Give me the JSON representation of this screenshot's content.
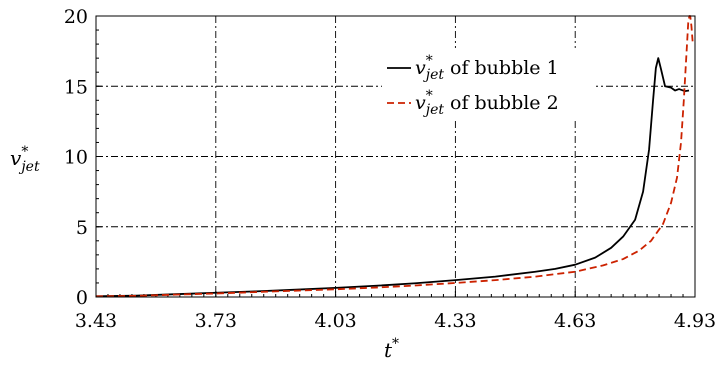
{
  "chart_data": {
    "type": "line",
    "xlabel": {
      "base": "t",
      "sup": "*"
    },
    "ylabel": {
      "base": "v",
      "sup": "*",
      "sub": "jet"
    },
    "xlim": [
      3.43,
      4.93
    ],
    "ylim": [
      0,
      20
    ],
    "xticks": [
      3.43,
      3.73,
      4.03,
      4.33,
      4.63,
      4.93
    ],
    "yticks": [
      0,
      5,
      10,
      15,
      20
    ],
    "xtick_labels": [
      "3.43",
      "3.73",
      "4.03",
      "4.33",
      "4.63",
      "4.93"
    ],
    "ytick_labels": [
      "0",
      "5",
      "10",
      "15",
      "20"
    ],
    "grid": true,
    "legend_position": "top-right",
    "series": [
      {
        "name": "of bubble 1",
        "label_var": {
          "base": "v",
          "sup": "*",
          "sub": "jet"
        },
        "color": "#000000",
        "style": "solid",
        "x": [
          3.43,
          3.53,
          3.63,
          3.73,
          3.83,
          3.93,
          4.03,
          4.13,
          4.23,
          4.33,
          4.43,
          4.53,
          4.58,
          4.63,
          4.68,
          4.72,
          4.75,
          4.78,
          4.8,
          4.815,
          4.825,
          4.832,
          4.838,
          4.845,
          4.855,
          4.87,
          4.88,
          4.89,
          4.905,
          4.915
        ],
        "y": [
          0.05,
          0.1,
          0.2,
          0.3,
          0.4,
          0.52,
          0.65,
          0.8,
          0.98,
          1.2,
          1.45,
          1.8,
          2.0,
          2.3,
          2.8,
          3.5,
          4.3,
          5.5,
          7.5,
          10.5,
          14.0,
          16.3,
          17.0,
          16.2,
          15.0,
          14.9,
          14.7,
          14.8,
          14.65,
          14.7
        ]
      },
      {
        "name": "of bubble 2",
        "label_var": {
          "base": "v",
          "sup": "*",
          "sub": "jet"
        },
        "color": "#cc2200",
        "style": "dashed",
        "x": [
          3.43,
          3.53,
          3.63,
          3.73,
          3.83,
          3.93,
          4.03,
          4.13,
          4.23,
          4.33,
          4.43,
          4.53,
          4.63,
          4.7,
          4.75,
          4.79,
          4.82,
          4.85,
          4.87,
          4.885,
          4.895,
          4.902,
          4.908,
          4.913,
          4.916,
          4.918,
          4.921,
          4.924
        ],
        "y": [
          0.05,
          0.08,
          0.17,
          0.25,
          0.35,
          0.45,
          0.55,
          0.67,
          0.82,
          1.0,
          1.2,
          1.45,
          1.8,
          2.25,
          2.7,
          3.3,
          4.0,
          5.2,
          6.7,
          8.5,
          11.0,
          14.0,
          17.0,
          19.5,
          20.0,
          20.0,
          19.3,
          18.2
        ]
      }
    ]
  }
}
